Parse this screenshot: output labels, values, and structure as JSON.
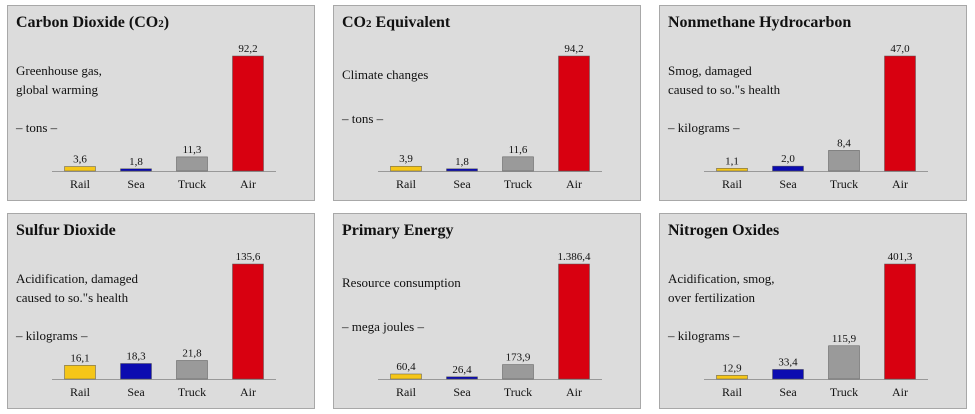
{
  "categories": [
    "Rail",
    "Sea",
    "Truck",
    "Air"
  ],
  "colors": {
    "Rail": "#f5c618",
    "Sea": "#0b0bb0",
    "Truck": "#9a9a9a",
    "Air": "#d80010",
    "panel": "#dcdcdc",
    "axis": "#999999"
  },
  "chart_data": [
    {
      "type": "bar",
      "title": "Carbon Dioxide (CO2)",
      "description": "Greenhouse gas,\nglobal warming",
      "unit": "– tons –",
      "categories": [
        "Rail",
        "Sea",
        "Truck",
        "Air"
      ],
      "values": [
        3.6,
        1.8,
        11.3,
        92.2
      ],
      "labels": [
        "3,6",
        "1,8",
        "11,3",
        "92,2"
      ]
    },
    {
      "type": "bar",
      "title": "CO2 Equivalent",
      "description": "Climate changes",
      "unit": "– tons –",
      "categories": [
        "Rail",
        "Sea",
        "Truck",
        "Air"
      ],
      "values": [
        3.9,
        1.8,
        11.6,
        94.2
      ],
      "labels": [
        "3,9",
        "1,8",
        "11,6",
        "94,2"
      ]
    },
    {
      "type": "bar",
      "title": "Nonmethane Hydrocarbon",
      "description": "Smog, damaged\ncaused to so.\"s health",
      "unit": "– kilograms –",
      "categories": [
        "Rail",
        "Sea",
        "Truck",
        "Air"
      ],
      "values": [
        1.1,
        2.0,
        8.4,
        47.0
      ],
      "labels": [
        "1,1",
        "2,0",
        "8,4",
        "47,0"
      ]
    },
    {
      "type": "bar",
      "title": "Sulfur Dioxide",
      "description": "Acidification, damaged\ncaused to so.\"s health",
      "unit": "– kilograms –",
      "categories": [
        "Rail",
        "Sea",
        "Truck",
        "Air"
      ],
      "values": [
        16.1,
        18.3,
        21.8,
        135.6
      ],
      "labels": [
        "16,1",
        "18,3",
        "21,8",
        "135,6"
      ]
    },
    {
      "type": "bar",
      "title": "Primary Energy",
      "description": "Resource consumption",
      "unit": "– mega joules –",
      "categories": [
        "Rail",
        "Sea",
        "Truck",
        "Air"
      ],
      "values": [
        60.4,
        26.4,
        173.9,
        1386.4
      ],
      "labels": [
        "60,4",
        "26,4",
        "173,9",
        "1.386,4"
      ]
    },
    {
      "type": "bar",
      "title": "Nitrogen Oxides",
      "description": "Acidification, smog,\nover fertilization",
      "unit": "– kilograms –",
      "categories": [
        "Rail",
        "Sea",
        "Truck",
        "Air"
      ],
      "values": [
        12.9,
        33.4,
        115.9,
        401.3
      ],
      "labels": [
        "12,9",
        "33,4",
        "115,9",
        "401,3"
      ]
    }
  ]
}
